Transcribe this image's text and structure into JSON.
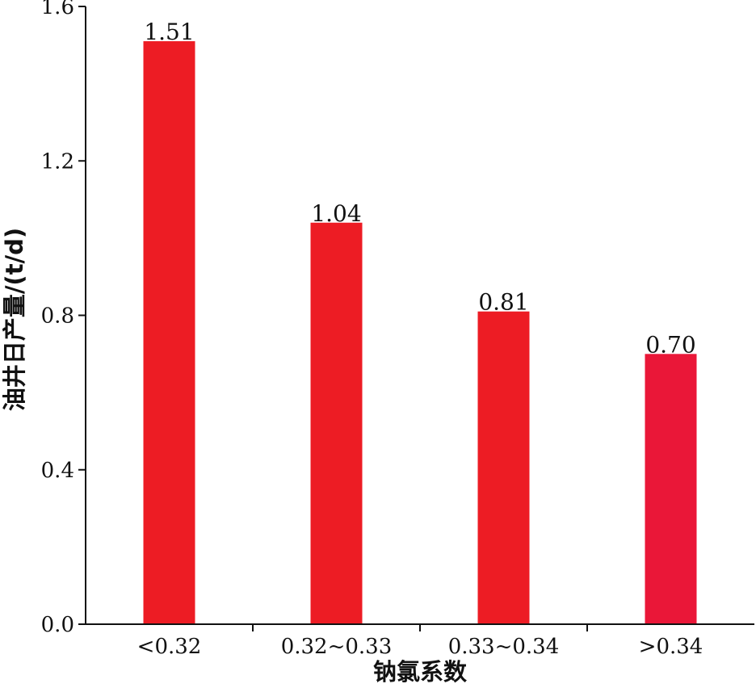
{
  "chart_data": {
    "type": "bar",
    "title": "",
    "xlabel": "钠氯系数",
    "ylabel": "油井日产量/(t/d)",
    "categories": [
      "<0.32",
      "0.32~0.33",
      "0.33~0.34",
      ">0.34"
    ],
    "values": [
      1.51,
      1.04,
      0.81,
      0.7
    ],
    "data_labels": [
      "1.51",
      "1.04",
      "0.81",
      "0.70"
    ],
    "ylim": [
      0,
      1.6
    ],
    "yticks": [
      0.0,
      0.4,
      0.8,
      1.2,
      1.6
    ],
    "ytick_labels": [
      "0.0",
      "0.4",
      "0.8",
      "1.2",
      "1.6"
    ],
    "bar_colors": [
      "#ED1C24",
      "#ED1C24",
      "#ED1C24",
      "#EA1738"
    ],
    "grid": false,
    "legend": "none"
  }
}
